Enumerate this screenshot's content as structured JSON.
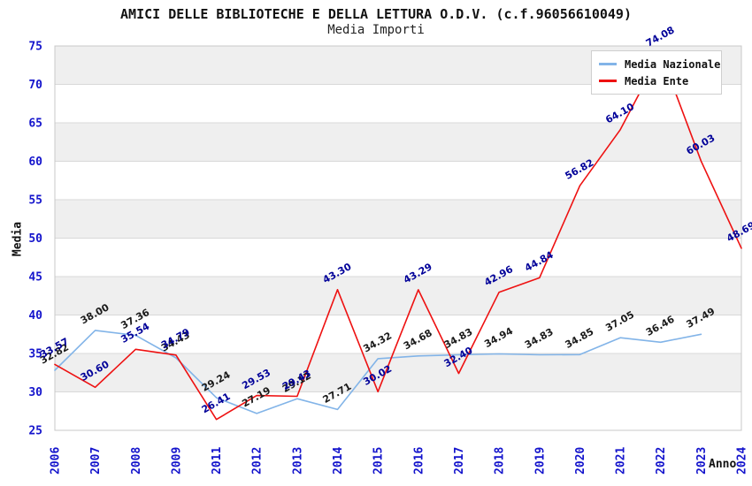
{
  "chart_data": {
    "type": "line",
    "title": "AMICI DELLE BIBLIOTECHE E DELLA LETTURA O.D.V. (c.f.96056610049)",
    "subtitle": "Media Importi",
    "xlabel": "Anno",
    "ylabel": "Media",
    "ylim": [
      25,
      75
    ],
    "ytick_step": 5,
    "grid": "horizontal",
    "banded_background": true,
    "legend_position": "top-right",
    "categories": [
      "2006",
      "2007",
      "2008",
      "2009",
      "2011",
      "2012",
      "2013",
      "2014",
      "2015",
      "2016",
      "2017",
      "2018",
      "2019",
      "2020",
      "2021",
      "2022",
      "2023",
      "2024"
    ],
    "series": [
      {
        "name": "Media Nazionale",
        "color": "#82B4E8",
        "label_color": "#1A1A1A",
        "values": [
          32.82,
          38.0,
          37.36,
          34.43,
          29.24,
          27.19,
          29.12,
          27.71,
          34.32,
          34.68,
          34.83,
          34.94,
          34.83,
          34.85,
          37.05,
          36.46,
          37.49,
          null
        ]
      },
      {
        "name": "Media Ente",
        "color": "#EE1111",
        "label_color": "#000099",
        "values": [
          33.57,
          30.6,
          35.54,
          34.79,
          26.41,
          29.53,
          29.43,
          43.3,
          30.02,
          43.29,
          32.4,
          42.96,
          44.84,
          56.82,
          64.1,
          74.08,
          60.03,
          48.69
        ]
      }
    ],
    "styles": {
      "tick_label_color": "#1414CC",
      "band_color": "#EFEFEF",
      "grid_color": "#D8D8D8",
      "border_color": "#C8C8C8"
    }
  }
}
